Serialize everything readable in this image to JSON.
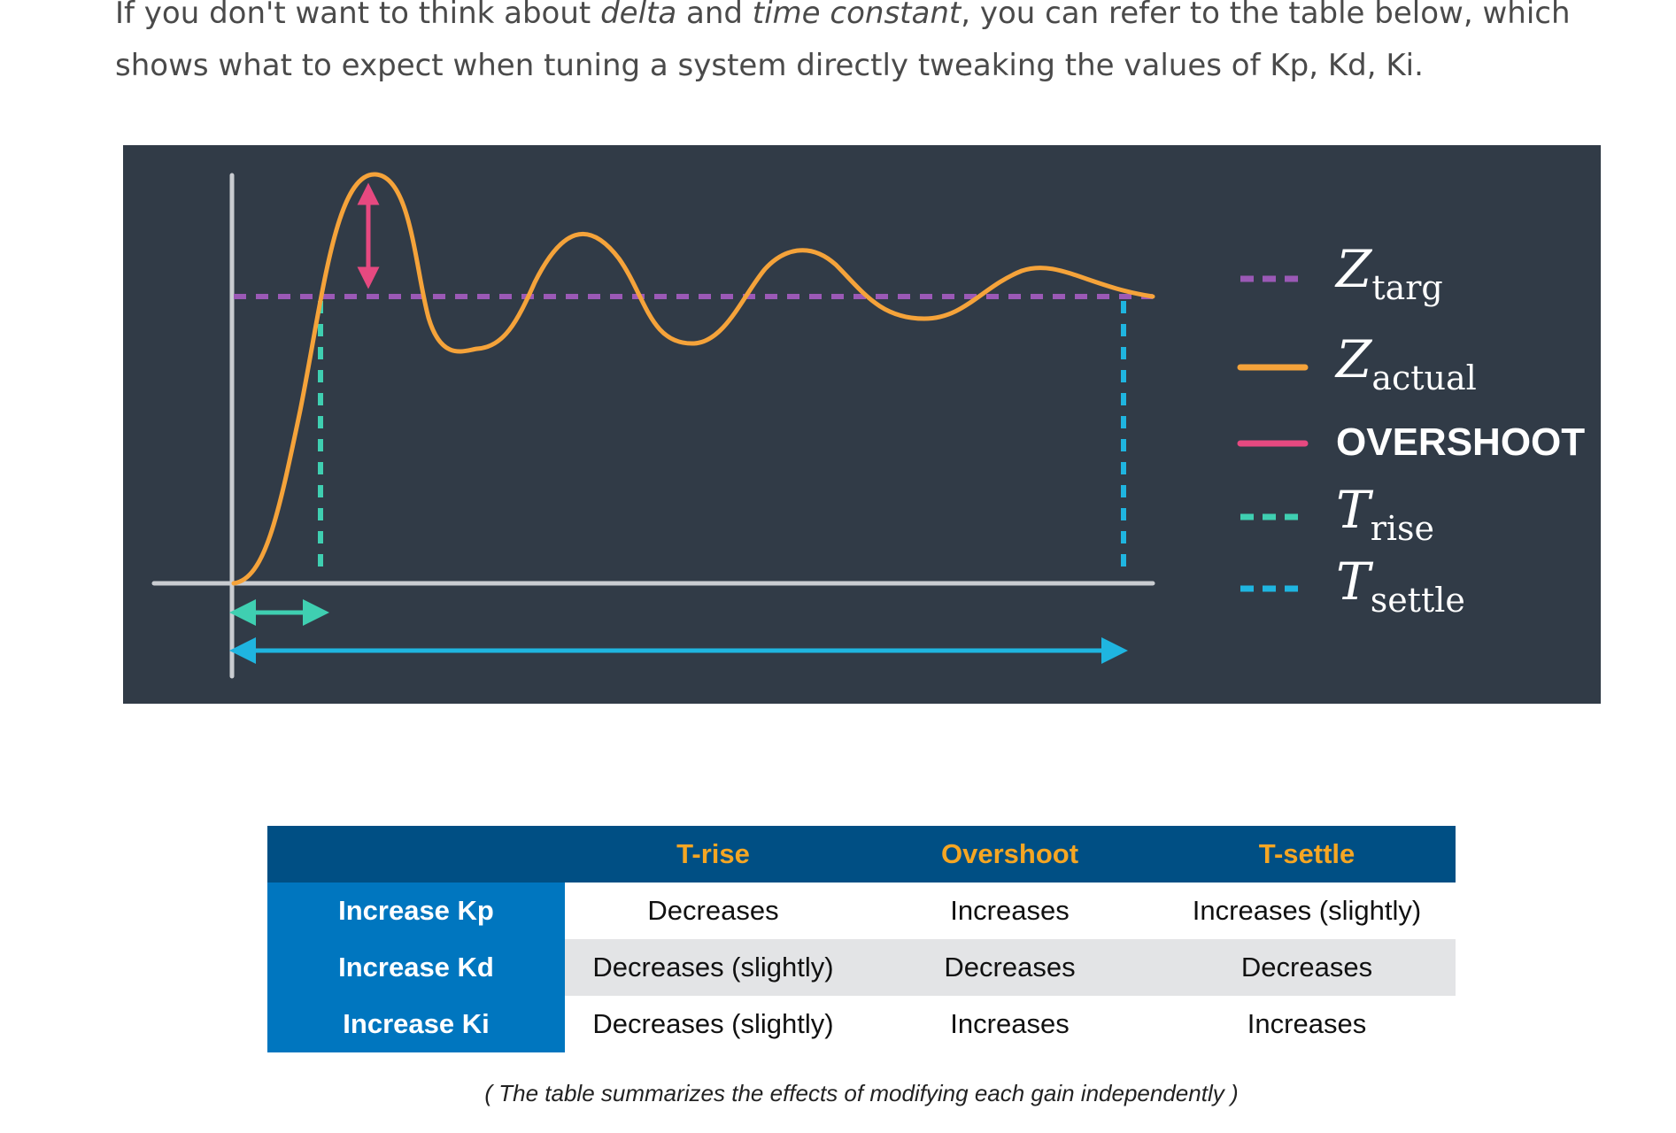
{
  "intro": {
    "part1": "If you don't want to think about ",
    "em1": "delta",
    "part2": " and ",
    "em2": "time constant",
    "part3": ", you can refer to the table below, which shows what to expect when tuning a system directly tweaking the values of Kp, Kd, Ki."
  },
  "figure": {
    "legend": [
      {
        "id": "z-targ",
        "symbol": "Z",
        "sub": "targ",
        "style": "dashed",
        "color": "#9b59b6"
      },
      {
        "id": "z-actual",
        "symbol": "Z",
        "sub": "actual",
        "style": "solid",
        "color": "#f5a33a"
      },
      {
        "id": "overshoot",
        "symbol": "",
        "sub": "",
        "text": "OVERSHOOT",
        "style": "solid",
        "color": "#e64980"
      },
      {
        "id": "t-rise",
        "symbol": "T",
        "sub": "rise",
        "style": "dashed",
        "color": "#3fcfb1"
      },
      {
        "id": "t-settle",
        "symbol": "T",
        "sub": "settle",
        "style": "dashed",
        "color": "#1fb5e0"
      }
    ],
    "colors": {
      "background": "#313b47",
      "axes": "#c9ccd1",
      "target": "#9b59b6",
      "actual": "#f5a33a",
      "overshoot": "#e64980",
      "rise": "#3fcfb1",
      "settle": "#1fb5e0"
    }
  },
  "table": {
    "columns": [
      "",
      "T-rise",
      "Overshoot",
      "T-settle"
    ],
    "rows": [
      {
        "label": "Increase Kp",
        "cells": [
          "Decreases",
          "Increases",
          "Increases (slightly)"
        ]
      },
      {
        "label": "Increase Kd",
        "cells": [
          "Decreases (slightly)",
          "Decreases",
          "Decreases"
        ]
      },
      {
        "label": "Increase Ki",
        "cells": [
          "Decreases (slightly)",
          "Increases",
          "Increases"
        ]
      }
    ],
    "colors": {
      "header_bg": "#004f84",
      "header_text": "#f5a623",
      "row_label_bg": "#0076bf",
      "shade_row": "#e3e4e6"
    }
  },
  "caption": "( The table summarizes the effects of modifying each gain independently )"
}
